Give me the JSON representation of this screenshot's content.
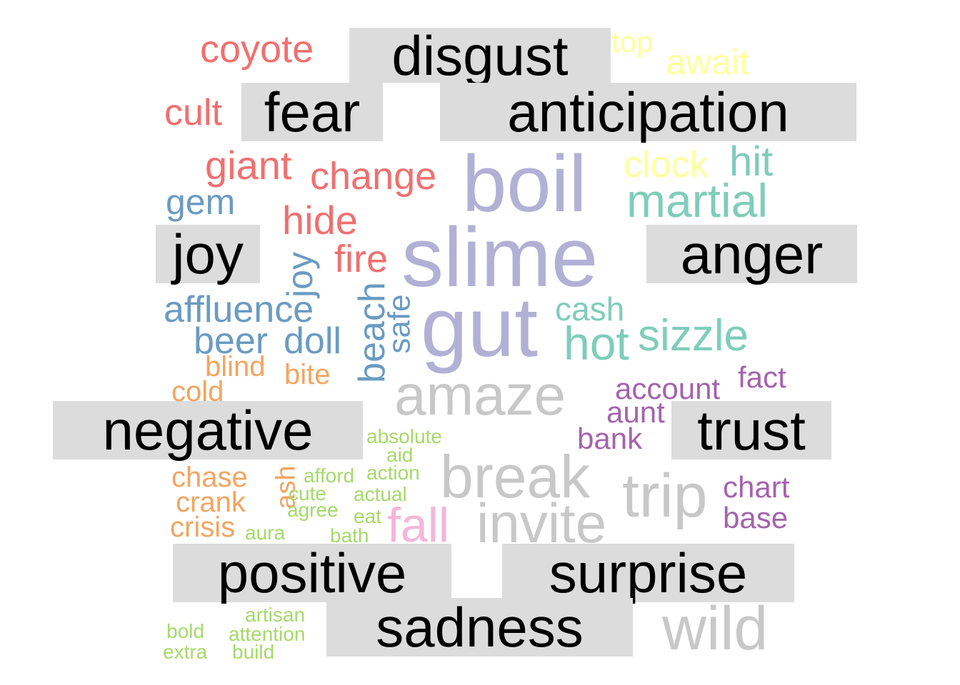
{
  "chart_data": {
    "type": "comparison word cloud",
    "title": "",
    "groups": [
      "disgust",
      "anticipation",
      "fear",
      "joy",
      "anger",
      "negative",
      "trust",
      "positive",
      "surprise",
      "sadness"
    ],
    "colors": {
      "fear": "#f07070",
      "anticipation": "#ffff9e",
      "joy": "#6a9bc3",
      "anger": "#7fcdbb",
      "negative": "#f4a460",
      "positive": "#a6d96a",
      "trust": "#a463ad",
      "surprise": "#c8c8c8",
      "sadness": "#f4b6d8",
      "disgust": "#b3b0d6"
    },
    "words": {
      "fear": [
        {
          "text": "coyote",
          "weight": 2
        },
        {
          "text": "cult",
          "weight": 2
        },
        {
          "text": "giant",
          "weight": 2.2
        },
        {
          "text": "change",
          "weight": 2.2
        },
        {
          "text": "hide",
          "weight": 2.2
        },
        {
          "text": "fire",
          "weight": 2.2
        }
      ],
      "anticipation": [
        {
          "text": "top",
          "weight": 1.6
        },
        {
          "text": "await",
          "weight": 1.9
        },
        {
          "text": "clock",
          "weight": 2
        }
      ],
      "joy": [
        {
          "text": "gem",
          "weight": 2
        },
        {
          "text": "joy",
          "weight": 2
        },
        {
          "text": "affluence",
          "weight": 2
        },
        {
          "text": "beer",
          "weight": 2
        },
        {
          "text": "doll",
          "weight": 2
        },
        {
          "text": "beach",
          "weight": 2
        },
        {
          "text": "safe",
          "weight": 1.8
        }
      ],
      "anger": [
        {
          "text": "hit",
          "weight": 2.2
        },
        {
          "text": "martial",
          "weight": 2.6
        },
        {
          "text": "cash",
          "weight": 1.8
        },
        {
          "text": "hot",
          "weight": 2.6
        },
        {
          "text": "sizzle",
          "weight": 2.4
        }
      ],
      "disgust": [
        {
          "text": "boil",
          "weight": 4.4
        },
        {
          "text": "slime",
          "weight": 4.6
        },
        {
          "text": "gut",
          "weight": 4.6
        }
      ],
      "negative": [
        {
          "text": "blind",
          "weight": 1.6
        },
        {
          "text": "bite",
          "weight": 1.6
        },
        {
          "text": "cold",
          "weight": 1.6
        },
        {
          "text": "chase",
          "weight": 1.6
        },
        {
          "text": "ash",
          "weight": 1.5
        },
        {
          "text": "crank",
          "weight": 1.6
        },
        {
          "text": "crisis",
          "weight": 1.6
        }
      ],
      "positive": [
        {
          "text": "absolute",
          "weight": 1.2
        },
        {
          "text": "aid",
          "weight": 1.2
        },
        {
          "text": "afford",
          "weight": 1.2
        },
        {
          "text": "action",
          "weight": 1.2
        },
        {
          "text": "cute",
          "weight": 1.2
        },
        {
          "text": "actual",
          "weight": 1.2
        },
        {
          "text": "agree",
          "weight": 1.2
        },
        {
          "text": "eat",
          "weight": 1.2
        },
        {
          "text": "aura",
          "weight": 1.2
        },
        {
          "text": "bath",
          "weight": 1.2
        },
        {
          "text": "artisan",
          "weight": 1.2
        },
        {
          "text": "bold",
          "weight": 1.2
        },
        {
          "text": "attention",
          "weight": 1.2
        },
        {
          "text": "extra",
          "weight": 1.2
        },
        {
          "text": "build",
          "weight": 1.2
        }
      ],
      "surprise": [
        {
          "text": "amaze",
          "weight": 3.4
        },
        {
          "text": "break",
          "weight": 3.6
        },
        {
          "text": "trip",
          "weight": 3.6
        },
        {
          "text": "invite",
          "weight": 3.4
        },
        {
          "text": "wild",
          "weight": 3.4
        }
      ],
      "trust": [
        {
          "text": "account",
          "weight": 1.7
        },
        {
          "text": "fact",
          "weight": 1.7
        },
        {
          "text": "aunt",
          "weight": 1.7
        },
        {
          "text": "bank",
          "weight": 1.7
        },
        {
          "text": "chart",
          "weight": 1.7
        },
        {
          "text": "base",
          "weight": 1.7
        }
      ],
      "sadness": [
        {
          "text": "fall",
          "weight": 2.8
        }
      ]
    }
  }
}
